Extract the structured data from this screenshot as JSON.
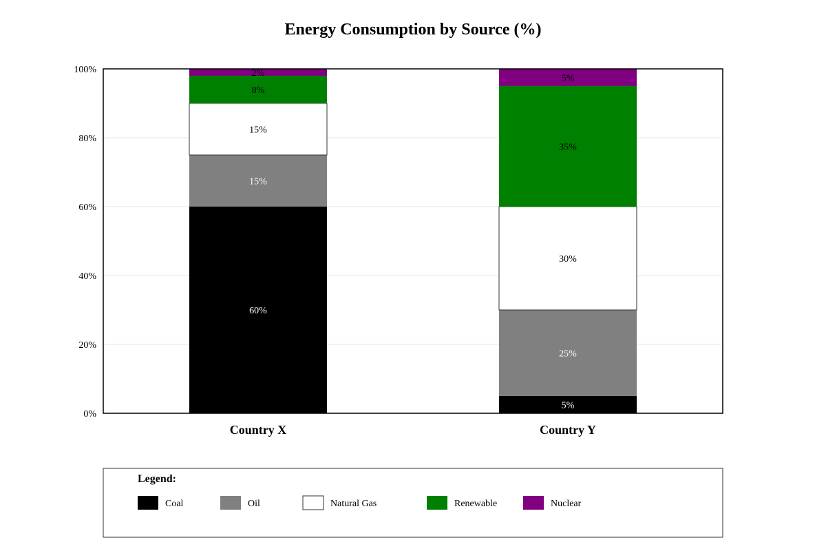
{
  "chart_data": {
    "type": "bar",
    "stacked": true,
    "title": "Energy Consumption by Source (%)",
    "xlabel": "",
    "ylabel": "",
    "ylim": [
      0,
      100
    ],
    "y_ticks": [
      "0%",
      "20%",
      "40%",
      "60%",
      "80%",
      "100%"
    ],
    "grid": true,
    "categories": [
      "Country X",
      "Country Y"
    ],
    "series": [
      {
        "name": "Coal",
        "values": [
          60,
          5
        ],
        "labels": [
          "60%",
          "5%"
        ],
        "color": "#000000",
        "label_color": "#ffffff"
      },
      {
        "name": "Oil",
        "values": [
          15,
          25
        ],
        "labels": [
          "15%",
          "25%"
        ],
        "color": "#808080",
        "label_color": "#ffffff"
      },
      {
        "name": "Natural Gas",
        "values": [
          15,
          30
        ],
        "labels": [
          "15%",
          "30%"
        ],
        "color": "#ffffff",
        "label_color": "#000000"
      },
      {
        "name": "Renewable",
        "values": [
          8,
          35
        ],
        "labels": [
          "8%",
          "35%"
        ],
        "color": "#008000",
        "label_color": "#000000"
      },
      {
        "name": "Nuclear",
        "values": [
          2,
          5
        ],
        "labels": [
          "2%",
          "5%"
        ],
        "color": "#800080",
        "label_color": "#000000"
      }
    ],
    "legend": {
      "title": "Legend:",
      "placement": "bottom"
    }
  }
}
